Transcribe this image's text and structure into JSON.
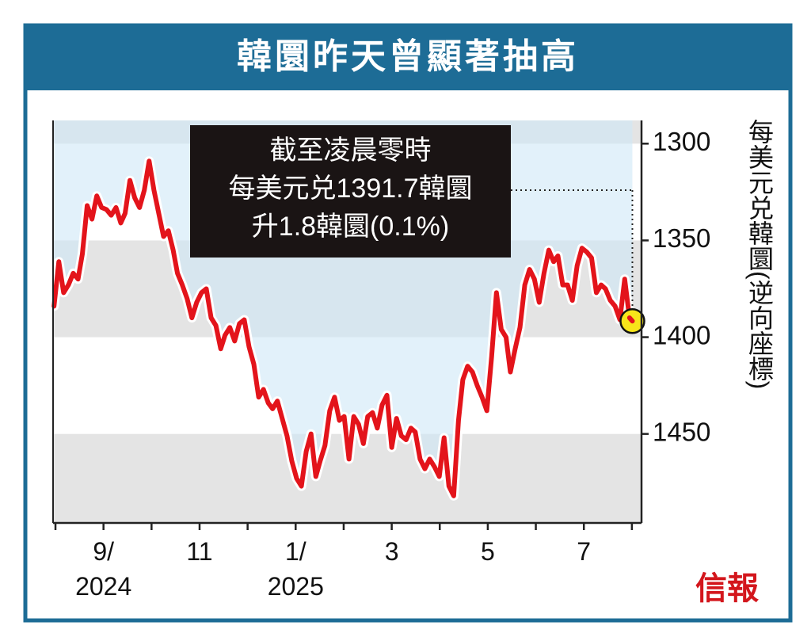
{
  "chart_data": {
    "type": "line",
    "title": "韓圜昨天曾顯著抽高",
    "y_label": "每美元兑韓圜(逆向座標)",
    "annotation": "截至凌晨零時\n每美元兑1391.7韓圜\n升1.8韓圜(0.1%)",
    "source": "信報",
    "y_inverted": true,
    "ylim": [
      1288,
      1496
    ],
    "yticks": [
      1300,
      1350,
      1400,
      1450
    ],
    "xlim": [
      7.95,
      20.2
    ],
    "xticks": [
      {
        "value": 9,
        "label": "9/\n2024"
      },
      {
        "value": 11,
        "label": "11"
      },
      {
        "value": 13,
        "label": "1/\n2025"
      },
      {
        "value": 15,
        "label": "3"
      },
      {
        "value": 17,
        "label": "5"
      },
      {
        "value": 19,
        "label": "7"
      }
    ],
    "xminorticks": [
      8,
      10,
      12,
      14,
      16,
      18,
      20
    ],
    "series": [
      {
        "color": "#e3141b",
        "x": [
          7.97,
          8.07,
          8.17,
          8.27,
          8.37,
          8.47,
          8.56,
          8.66,
          8.76,
          8.86,
          8.96,
          9.06,
          9.16,
          9.26,
          9.36,
          9.45,
          9.55,
          9.65,
          9.75,
          9.85,
          9.95,
          10.05,
          10.15,
          10.25,
          10.35,
          10.45,
          10.54,
          10.64,
          10.74,
          10.84,
          10.94,
          11.04,
          11.14,
          11.24,
          11.34,
          11.44,
          11.53,
          11.63,
          11.73,
          11.83,
          11.93,
          12.03,
          12.13,
          12.23,
          12.33,
          12.43,
          12.52,
          12.62,
          12.72,
          12.82,
          12.92,
          13.02,
          13.12,
          13.22,
          13.32,
          13.42,
          13.51,
          13.61,
          13.71,
          13.81,
          13.91,
          14.01,
          14.11,
          14.21,
          14.31,
          14.41,
          14.5,
          14.6,
          14.7,
          14.8,
          14.9,
          15.0,
          15.1,
          15.2,
          15.3,
          15.4,
          15.49,
          15.59,
          15.69,
          15.79,
          15.89,
          15.99,
          16.09,
          16.19,
          16.29,
          16.39,
          16.48,
          16.58,
          16.68,
          16.78,
          16.88,
          16.98,
          17.08,
          17.18,
          17.28,
          17.38,
          17.47,
          17.57,
          17.67,
          17.77,
          17.87,
          17.97,
          18.07,
          18.17,
          18.27,
          18.37,
          18.46,
          18.56,
          18.66,
          18.76,
          18.86,
          18.96,
          19.06,
          19.16,
          19.26,
          19.36,
          19.45,
          19.55,
          19.65,
          19.75,
          19.85,
          19.95,
          20.01
        ],
        "values": [
          1384,
          1361,
          1377,
          1373,
          1367,
          1370,
          1357,
          1332,
          1339,
          1327,
          1333,
          1334,
          1337,
          1333,
          1341,
          1336,
          1319,
          1328,
          1333,
          1324,
          1309,
          1324,
          1336,
          1348,
          1345,
          1355,
          1367,
          1373,
          1380,
          1390,
          1382,
          1377,
          1375,
          1390,
          1394,
          1406,
          1399,
          1395,
          1402,
          1393,
          1391,
          1405,
          1414,
          1431,
          1427,
          1434,
          1437,
          1433,
          1442,
          1451,
          1464,
          1473,
          1477,
          1459,
          1450,
          1472,
          1464,
          1456,
          1438,
          1431,
          1443,
          1441,
          1463,
          1441,
          1445,
          1455,
          1441,
          1439,
          1447,
          1435,
          1430,
          1457,
          1442,
          1451,
          1453,
          1447,
          1449,
          1463,
          1468,
          1463,
          1467,
          1472,
          1452,
          1477,
          1482,
          1443,
          1422,
          1415,
          1418,
          1425,
          1431,
          1438,
          1410,
          1377,
          1396,
          1400,
          1418,
          1406,
          1395,
          1373,
          1365,
          1370,
          1382,
          1367,
          1355,
          1361,
          1358,
          1373,
          1373,
          1381,
          1363,
          1354,
          1356,
          1359,
          1377,
          1373,
          1375,
          1381,
          1384,
          1391,
          1370,
          1390,
          1391.7
        ]
      }
    ]
  }
}
